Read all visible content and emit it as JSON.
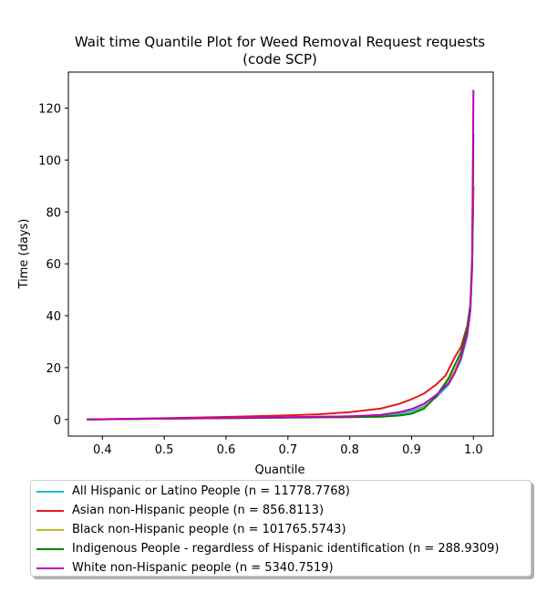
{
  "chart_data": {
    "type": "line",
    "title": "Wait time Quantile Plot for Weed Removal Request  requests",
    "subtitle": "(code SCP)",
    "xlabel": "Quantile",
    "ylabel": "Time (days)",
    "xlim": [
      0.345,
      1.032
    ],
    "ylim": [
      -6.4,
      133.9
    ],
    "x_ticks": [
      "0.4",
      "0.5",
      "0.6",
      "0.7",
      "0.8",
      "0.9",
      "1.0"
    ],
    "x_tick_values": [
      0.4,
      0.5,
      0.6,
      0.7,
      0.8,
      0.9,
      1.0
    ],
    "y_ticks": [
      "0",
      "20",
      "40",
      "60",
      "80",
      "100",
      "120"
    ],
    "y_tick_values": [
      0,
      20,
      40,
      60,
      80,
      100,
      120
    ],
    "grid": false,
    "legend_position": "below",
    "series": [
      {
        "name": "All Hispanic or Latino People (n = 11778.7768)",
        "color": "#17becf",
        "x": [
          0.375,
          0.5,
          0.6,
          0.7,
          0.8,
          0.85,
          0.88,
          0.9,
          0.92,
          0.94,
          0.96,
          0.97,
          0.98,
          0.99,
          0.995,
          0.998,
          1.0
        ],
        "y": [
          0,
          0.4,
          0.7,
          0.9,
          1.2,
          1.6,
          2.3,
          3.2,
          5,
          8.5,
          13.5,
          18,
          23,
          32,
          42,
          58,
          90
        ]
      },
      {
        "name": "Asian non-Hispanic people (n = 856.8113)",
        "color": "#e41a1c",
        "x": [
          0.375,
          0.5,
          0.6,
          0.7,
          0.75,
          0.8,
          0.85,
          0.88,
          0.9,
          0.92,
          0.94,
          0.955,
          0.97,
          0.98,
          0.99,
          0.995,
          0.998,
          1.0
        ],
        "y": [
          0,
          0.5,
          1,
          1.6,
          2,
          2.8,
          4.2,
          6,
          7.8,
          10,
          13.5,
          17,
          24,
          28,
          36,
          44,
          60,
          90
        ]
      },
      {
        "name": "Black non-Hispanic people (n = 101765.5743)",
        "color": "#bcbd22",
        "x": [
          0.375,
          0.5,
          0.6,
          0.7,
          0.8,
          0.85,
          0.88,
          0.9,
          0.92,
          0.94,
          0.96,
          0.97,
          0.98,
          0.99,
          0.995,
          0.998,
          1.0
        ],
        "y": [
          0,
          0.3,
          0.5,
          0.7,
          0.9,
          1.1,
          1.6,
          2.4,
          4.5,
          9,
          15,
          19,
          24,
          33,
          42,
          60,
          100
        ]
      },
      {
        "name": "Indigenous People - regardless of Hispanic identification (n = 288.9309)",
        "color": "#008000",
        "x": [
          0.375,
          0.5,
          0.6,
          0.7,
          0.8,
          0.85,
          0.88,
          0.9,
          0.92,
          0.94,
          0.96,
          0.97,
          0.98,
          0.99,
          0.995,
          0.998,
          1.0
        ],
        "y": [
          0,
          0.3,
          0.5,
          0.7,
          0.9,
          1.1,
          1.5,
          2.2,
          4.2,
          9,
          16,
          21,
          26,
          35,
          44,
          62,
          110
        ]
      },
      {
        "name": "White non-Hispanic people (n = 5340.7519)",
        "color": "#bf00bf",
        "x": [
          0.375,
          0.5,
          0.6,
          0.7,
          0.8,
          0.85,
          0.88,
          0.9,
          0.92,
          0.94,
          0.96,
          0.97,
          0.98,
          0.99,
          0.995,
          0.998,
          1.0
        ],
        "y": [
          0,
          0.4,
          0.6,
          0.9,
          1.2,
          1.8,
          2.8,
          4,
          6,
          9.5,
          14,
          18,
          24,
          33,
          42,
          60,
          127
        ]
      }
    ]
  }
}
